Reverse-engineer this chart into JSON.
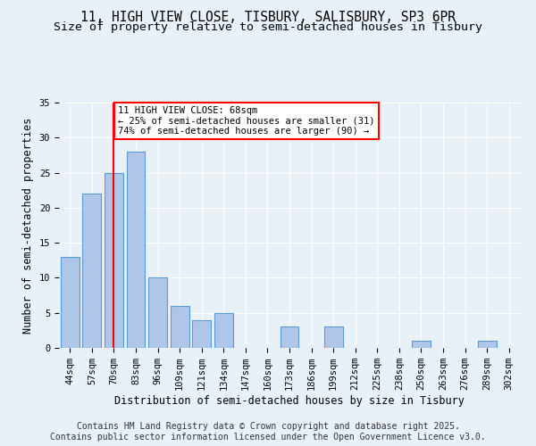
{
  "title_line1": "11, HIGH VIEW CLOSE, TISBURY, SALISBURY, SP3 6PR",
  "title_line2": "Size of property relative to semi-detached houses in Tisbury",
  "xlabel": "Distribution of semi-detached houses by size in Tisbury",
  "ylabel": "Number of semi-detached properties",
  "categories": [
    "44sqm",
    "57sqm",
    "70sqm",
    "83sqm",
    "96sqm",
    "109sqm",
    "121sqm",
    "134sqm",
    "147sqm",
    "160sqm",
    "173sqm",
    "186sqm",
    "199sqm",
    "212sqm",
    "225sqm",
    "238sqm",
    "250sqm",
    "263sqm",
    "276sqm",
    "289sqm",
    "302sqm"
  ],
  "values": [
    13,
    22,
    25,
    28,
    10,
    6,
    4,
    5,
    0,
    0,
    3,
    0,
    3,
    0,
    0,
    0,
    1,
    0,
    0,
    1,
    0
  ],
  "bar_color": "#aec6e8",
  "bar_edgecolor": "#5b9bd5",
  "vline_x_index": 2,
  "vline_color": "red",
  "annotation_text": "11 HIGH VIEW CLOSE: 68sqm\n← 25% of semi-detached houses are smaller (31)\n74% of semi-detached houses are larger (90) →",
  "annotation_box_color": "red",
  "annotation_bg": "white",
  "ylim": [
    0,
    35
  ],
  "yticks": [
    0,
    5,
    10,
    15,
    20,
    25,
    30,
    35
  ],
  "footer_line1": "Contains HM Land Registry data © Crown copyright and database right 2025.",
  "footer_line2": "Contains public sector information licensed under the Open Government Licence v3.0.",
  "background_color": "#e8f0f8",
  "plot_bg_color": "#e8f0f8",
  "title_fontsize": 10.5,
  "subtitle_fontsize": 9.5,
  "tick_fontsize": 7.5,
  "label_fontsize": 8.5,
  "footer_fontsize": 7
}
